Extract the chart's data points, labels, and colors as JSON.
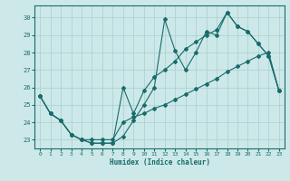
{
  "xlabel": "Humidex (Indice chaleur)",
  "xlim": [
    -0.5,
    23.5
  ],
  "ylim": [
    22.5,
    30.7
  ],
  "xticks": [
    0,
    1,
    2,
    3,
    4,
    5,
    6,
    7,
    8,
    9,
    10,
    11,
    12,
    13,
    14,
    15,
    16,
    17,
    18,
    19,
    20,
    21,
    22,
    23
  ],
  "yticks": [
    23,
    24,
    25,
    26,
    27,
    28,
    29,
    30
  ],
  "bg_color": "#cce8e8",
  "grid_color": "#aacfcf",
  "line_color": "#1a6b6b",
  "line1_x": [
    0,
    1,
    2,
    3,
    4,
    5,
    6,
    7,
    8,
    9,
    10,
    11,
    12,
    13,
    14,
    15,
    16,
    17,
    18,
    19,
    20,
    21,
    22,
    23
  ],
  "line1_y": [
    25.5,
    24.5,
    24.1,
    23.3,
    23.0,
    22.8,
    22.8,
    22.8,
    23.2,
    24.1,
    25.0,
    26.0,
    29.9,
    28.1,
    27.0,
    28.0,
    29.2,
    29.0,
    30.3,
    29.5,
    29.2,
    28.5,
    27.8,
    25.8
  ],
  "line2_x": [
    0,
    1,
    2,
    3,
    4,
    5,
    6,
    7,
    8,
    9,
    10,
    11,
    12,
    13,
    14,
    15,
    16,
    17,
    18,
    19,
    20,
    21,
    22,
    23
  ],
  "line2_y": [
    25.5,
    24.5,
    24.1,
    23.3,
    23.0,
    22.8,
    22.8,
    22.8,
    26.0,
    24.5,
    25.8,
    26.6,
    27.0,
    27.5,
    28.2,
    28.6,
    29.0,
    29.3,
    30.3,
    29.5,
    29.2,
    28.5,
    27.8,
    25.8
  ],
  "line3_x": [
    0,
    1,
    2,
    3,
    4,
    5,
    6,
    7,
    8,
    9,
    10,
    11,
    12,
    13,
    14,
    15,
    16,
    17,
    18,
    19,
    20,
    21,
    22,
    23
  ],
  "line3_y": [
    25.5,
    24.5,
    24.1,
    23.3,
    23.0,
    23.0,
    23.0,
    23.0,
    24.0,
    24.3,
    24.5,
    24.8,
    25.0,
    25.3,
    25.6,
    25.9,
    26.2,
    26.5,
    26.9,
    27.2,
    27.5,
    27.8,
    28.0,
    25.8
  ]
}
